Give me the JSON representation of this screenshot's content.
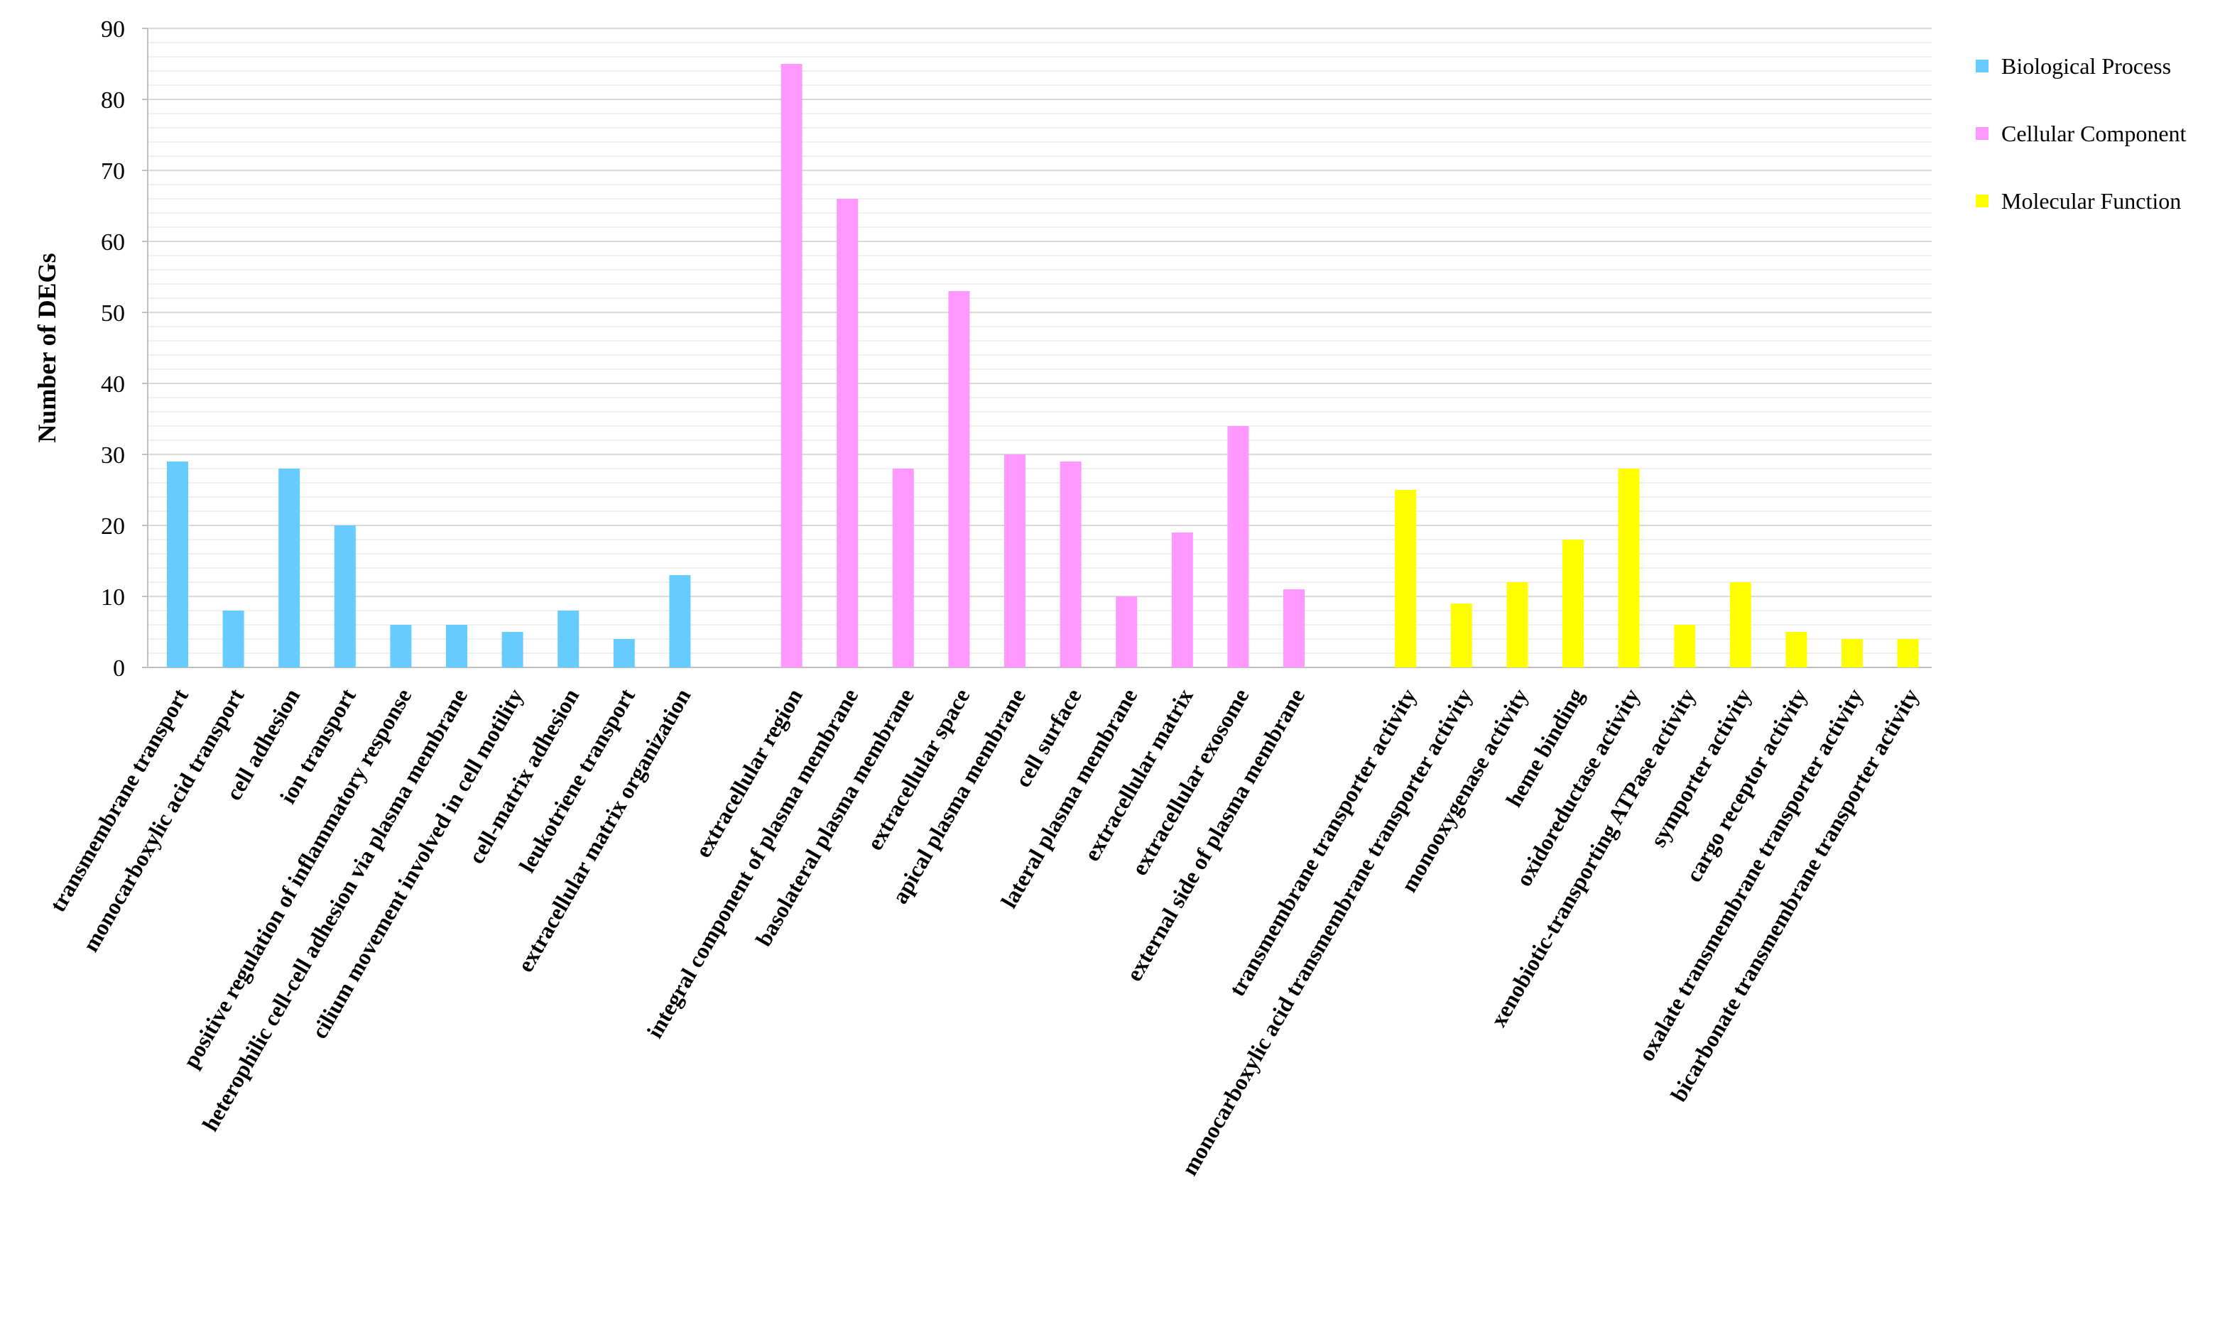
{
  "chart_data": {
    "type": "bar",
    "title": "",
    "xlabel": "",
    "ylabel": "Number of DEGs",
    "ylim": [
      0,
      90
    ],
    "yticks": [
      "0",
      "10",
      "20",
      "30",
      "40",
      "50",
      "60",
      "70",
      "80",
      "90"
    ],
    "grid": "horizontal",
    "legend_position": "right",
    "colors": {
      "Biological Process": "#66CCFF",
      "Cellular Component": "#FF99FF",
      "Molecular Function": "#FFFF00"
    },
    "groups": [
      {
        "name": "Biological Process",
        "categories": [
          "transmembrane transport",
          "monocarboxylic acid transport",
          "cell adhesion",
          "ion transport",
          "positive regulation of inflammatory response",
          "heterophilic cell-cell adhesion via plasma membrane",
          "cilium movement involved in cell motility",
          "cell-matrix adhesion",
          "leukotriene transport",
          "extracellular matrix organization"
        ],
        "values": [
          29,
          8,
          28,
          20,
          6,
          6,
          5,
          8,
          4,
          13
        ]
      },
      {
        "name": "Cellular Component",
        "categories": [
          "extracellular region",
          "integral component of plasma membrane",
          "basolateral plasma membrane",
          "extracellular space",
          "apical plasma membrane",
          "cell surface",
          "lateral plasma membrane",
          "extracellular matrix",
          "extracellular exosome",
          "external side of plasma membrane"
        ],
        "values": [
          85,
          66,
          28,
          53,
          30,
          29,
          10,
          19,
          34,
          11
        ]
      },
      {
        "name": "Molecular Function",
        "categories": [
          "transmembrane transporter activity",
          "monocarboxylic acid transmembrane transporter activity",
          "monooxygenase activity",
          "heme binding",
          "oxidoreductase activity",
          "xenobiotic-transporting ATPase activity",
          "symporter activity",
          "cargo receptor activity",
          "oxalate transmembrane transporter activity",
          "bicarbonate transmembrane transporter activity"
        ],
        "values": [
          25,
          9,
          12,
          18,
          28,
          6,
          12,
          5,
          4,
          4
        ]
      }
    ]
  }
}
